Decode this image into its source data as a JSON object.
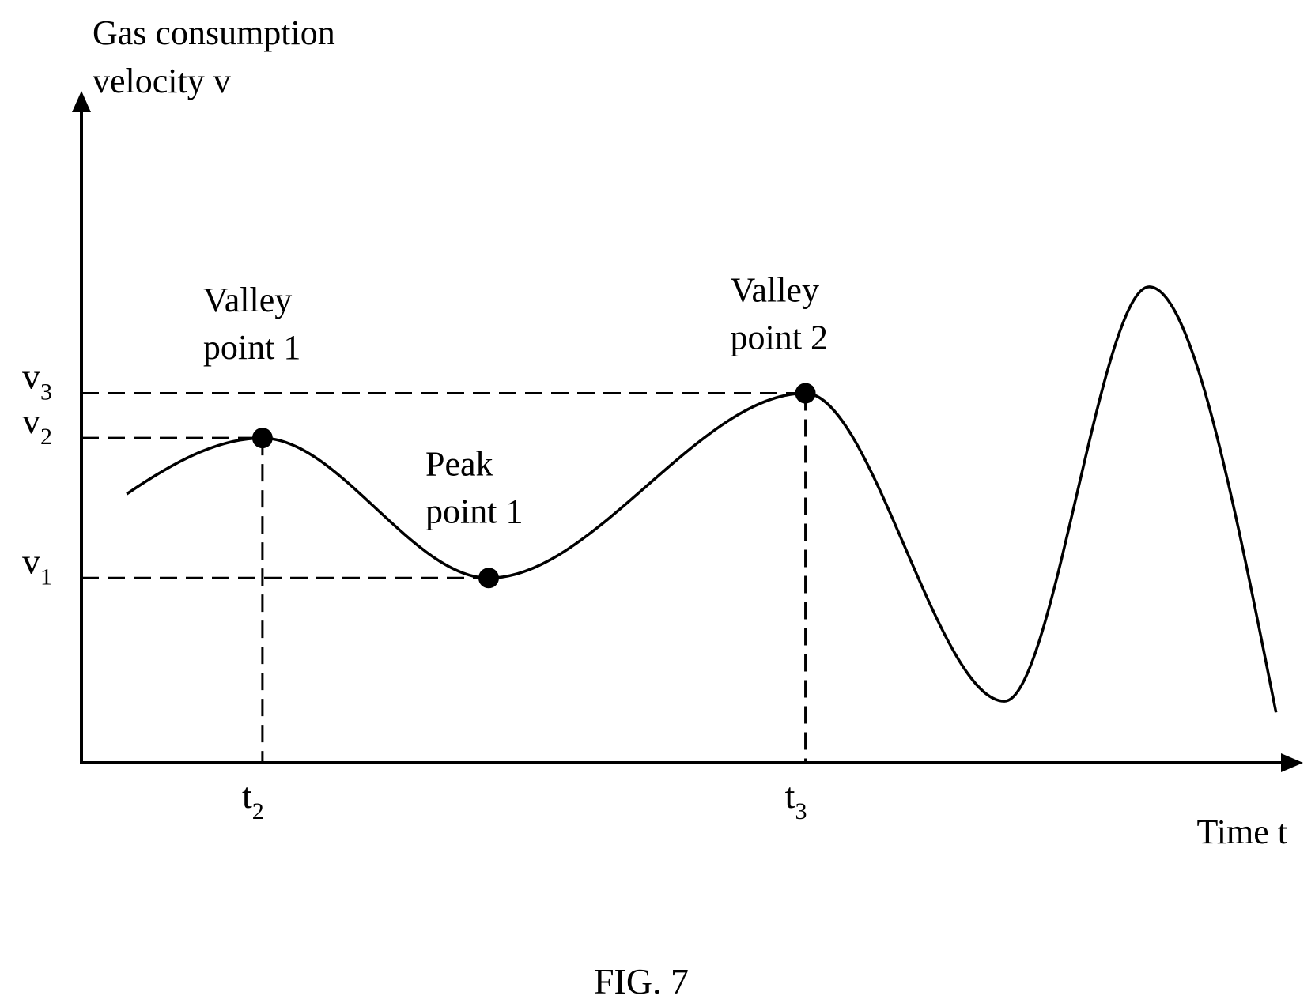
{
  "chart_data": {
    "type": "line",
    "caption": "FIG. 7",
    "ylabel_lines": [
      "Gas consumption",
      "velocity v"
    ],
    "xlabel": "Time t",
    "x_ticks": [
      {
        "base": "t",
        "sub": "2",
        "x": 2.0
      },
      {
        "base": "t",
        "sub": "3",
        "x": 8.0
      }
    ],
    "y_ticks": [
      {
        "base": "v",
        "sub": "3",
        "y": 6.6
      },
      {
        "base": "v",
        "sub": "2",
        "y": 5.8
      },
      {
        "base": "v",
        "sub": "1",
        "y": 3.3
      }
    ],
    "xlim": [
      0,
      13.5
    ],
    "ylim": [
      0,
      12
    ],
    "series": [
      {
        "points": [
          {
            "x": 0.5,
            "y": 4.8
          },
          {
            "x": 2.0,
            "y": 5.8
          },
          {
            "x": 4.5,
            "y": 3.3
          },
          {
            "x": 8.0,
            "y": 6.6
          },
          {
            "x": 10.2,
            "y": 1.1
          },
          {
            "x": 11.8,
            "y": 8.5
          },
          {
            "x": 13.2,
            "y": 0.9
          }
        ]
      }
    ],
    "marked_points": [
      {
        "label_lines": [
          "Valley",
          "point 1"
        ],
        "x": 2.0,
        "y": 5.8
      },
      {
        "label_lines": [
          "Peak",
          "point 1"
        ],
        "x": 4.5,
        "y": 3.3
      },
      {
        "label_lines": [
          "Valley",
          "point 2"
        ],
        "x": 8.0,
        "y": 6.6
      }
    ]
  }
}
